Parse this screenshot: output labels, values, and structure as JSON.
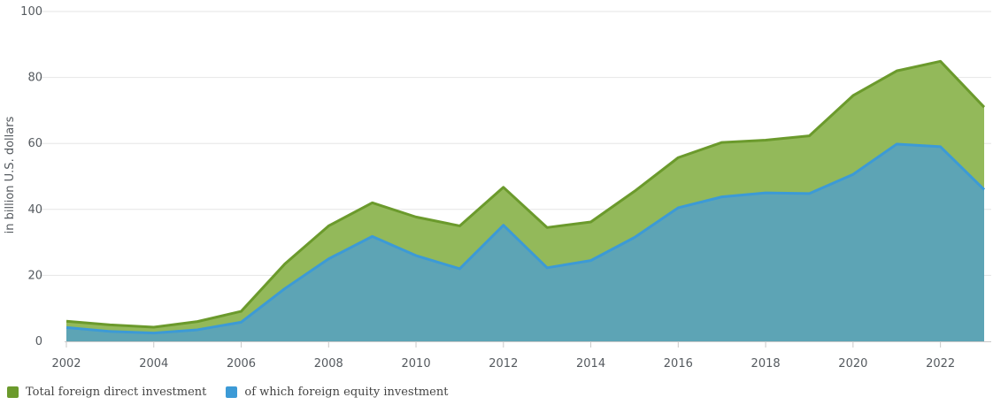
{
  "chart_data": {
    "type": "area",
    "title": "",
    "xlabel": "",
    "ylabel": "in billion U.S. dollars",
    "x": [
      2002,
      2003,
      2004,
      2005,
      2006,
      2007,
      2008,
      2009,
      2010,
      2011,
      2012,
      2013,
      2014,
      2015,
      2016,
      2017,
      2018,
      2019,
      2020,
      2021,
      2022,
      2023
    ],
    "xticks": [
      2002,
      2004,
      2006,
      2008,
      2010,
      2012,
      2014,
      2016,
      2018,
      2020,
      2022
    ],
    "yticks": [
      0,
      20,
      40,
      60,
      80,
      100
    ],
    "ylim": [
      0,
      100
    ],
    "xlim": [
      2002,
      2023
    ],
    "grid": true,
    "legend_position": "bottom-left",
    "series": [
      {
        "name": "Total foreign direct investment",
        "color": "#6b9a2c",
        "fill": "#93b95a",
        "values": [
          6.1,
          5.0,
          4.3,
          6.0,
          9.1,
          23.5,
          35.0,
          42.0,
          37.7,
          35.0,
          46.7,
          34.5,
          36.2,
          45.5,
          55.7,
          60.3,
          61.0,
          62.3,
          74.5,
          82.0,
          84.9,
          71.0
        ]
      },
      {
        "name": "of which foreign equity investment",
        "color": "#3c9ad6",
        "fill": "#5da4b5",
        "values": [
          4.2,
          3.0,
          2.5,
          3.5,
          5.8,
          16.0,
          25.0,
          31.8,
          26.0,
          22.0,
          35.2,
          22.3,
          24.5,
          31.5,
          40.5,
          43.8,
          45.0,
          44.8,
          50.6,
          59.8,
          59.0,
          46.0
        ]
      }
    ]
  }
}
